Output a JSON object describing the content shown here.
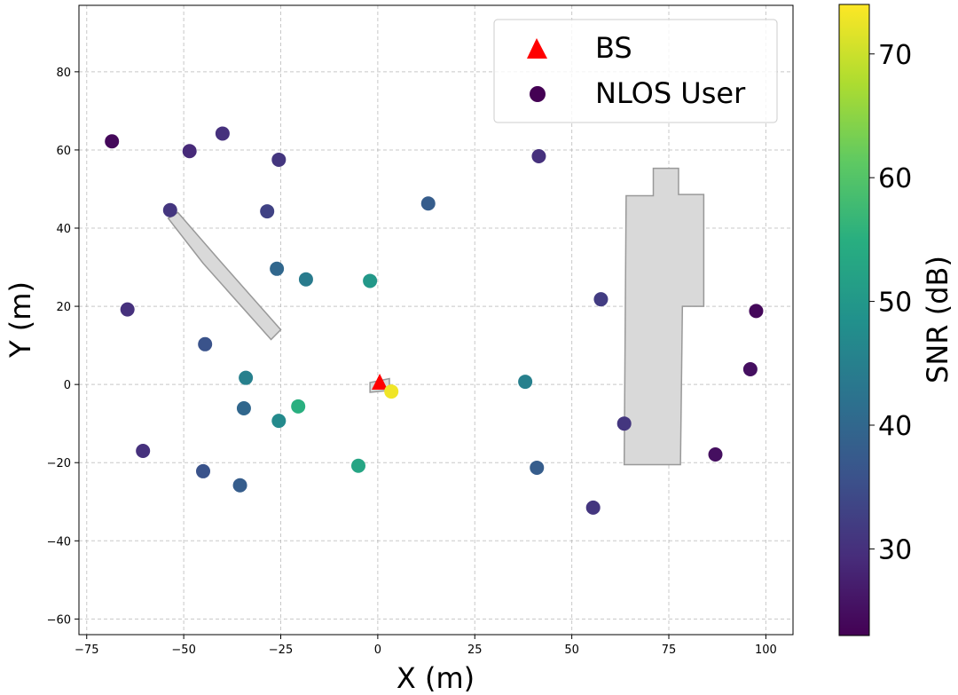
{
  "chart_data": {
    "type": "scatter",
    "title": "",
    "xlabel": "X (m)",
    "ylabel": "Y (m)",
    "xlim": [
      -77,
      107
    ],
    "ylim": [
      -64,
      97
    ],
    "xticks": [
      -75,
      -50,
      -25,
      0,
      25,
      50,
      75,
      100
    ],
    "yticks": [
      -60,
      -40,
      -20,
      0,
      20,
      40,
      60,
      80
    ],
    "grid": true,
    "legend": {
      "placement": "top-right",
      "entries": [
        {
          "label": "BS",
          "marker": "triangle",
          "color": "#ff0000"
        },
        {
          "label": "NLOS User",
          "marker": "circle",
          "color": "#440154"
        }
      ]
    },
    "colorbar": {
      "label": "SNR (dB)",
      "range": [
        23,
        74
      ],
      "ticks": [
        30,
        40,
        50,
        60,
        70
      ]
    },
    "base_station": {
      "name": "BS",
      "x": 0.5,
      "y": 0.5
    },
    "users": [
      {
        "x": -68.5,
        "y": 62.2,
        "snr": 24
      },
      {
        "x": -48.5,
        "y": 59.7,
        "snr": 29
      },
      {
        "x": -40.0,
        "y": 64.2,
        "snr": 30
      },
      {
        "x": -25.5,
        "y": 57.5,
        "snr": 31
      },
      {
        "x": -53.5,
        "y": 44.6,
        "snr": 31
      },
      {
        "x": -28.5,
        "y": 44.3,
        "snr": 33
      },
      {
        "x": -64.5,
        "y": 19.2,
        "snr": 30
      },
      {
        "x": -44.5,
        "y": 10.3,
        "snr": 36
      },
      {
        "x": -26.0,
        "y": 29.6,
        "snr": 40
      },
      {
        "x": -18.5,
        "y": 26.9,
        "snr": 44
      },
      {
        "x": -2.0,
        "y": 26.5,
        "snr": 50
      },
      {
        "x": -34.0,
        "y": 1.7,
        "snr": 45
      },
      {
        "x": -34.5,
        "y": -6.1,
        "snr": 40
      },
      {
        "x": -25.5,
        "y": -9.3,
        "snr": 47
      },
      {
        "x": -20.5,
        "y": -5.6,
        "snr": 55
      },
      {
        "x": -60.5,
        "y": -17.0,
        "snr": 30
      },
      {
        "x": -45.0,
        "y": -22.2,
        "snr": 36
      },
      {
        "x": -35.5,
        "y": -25.8,
        "snr": 38
      },
      {
        "x": -5.0,
        "y": -20.8,
        "snr": 53
      },
      {
        "x": 3.5,
        "y": -1.8,
        "snr": 73
      },
      {
        "x": 13.0,
        "y": 46.3,
        "snr": 38
      },
      {
        "x": 38.0,
        "y": 0.7,
        "snr": 45
      },
      {
        "x": 41.0,
        "y": -21.3,
        "snr": 38
      },
      {
        "x": 41.5,
        "y": 58.4,
        "snr": 30
      },
      {
        "x": 57.5,
        "y": 21.8,
        "snr": 32
      },
      {
        "x": 55.5,
        "y": -31.5,
        "snr": 31
      },
      {
        "x": 63.5,
        "y": -10.0,
        "snr": 31
      },
      {
        "x": 87.0,
        "y": -17.9,
        "snr": 25
      },
      {
        "x": 96.0,
        "y": 3.9,
        "snr": 25
      },
      {
        "x": 97.5,
        "y": 18.8,
        "snr": 24
      }
    ],
    "obstacles": [
      {
        "shape": "diagonal-wall",
        "points": [
          [
            -54,
            42.5
          ],
          [
            -51.5,
            44
          ],
          [
            -41,
            32
          ],
          [
            -25,
            14
          ],
          [
            -27.5,
            11.5
          ],
          [
            -45,
            31
          ]
        ]
      },
      {
        "shape": "tall-building",
        "points": [
          [
            64,
            48.3
          ],
          [
            71,
            48.3
          ],
          [
            71,
            55.3
          ],
          [
            77.5,
            55.3
          ],
          [
            77.5,
            48.6
          ],
          [
            84,
            48.6
          ],
          [
            84,
            20
          ],
          [
            78.5,
            20
          ],
          [
            78,
            -20.5
          ],
          [
            63.5,
            -20.5
          ]
        ]
      },
      {
        "shape": "small-block",
        "points": [
          [
            -2,
            -2
          ],
          [
            3,
            -1.5
          ],
          [
            3,
            1.5
          ],
          [
            -2,
            0.5
          ]
        ]
      }
    ]
  }
}
